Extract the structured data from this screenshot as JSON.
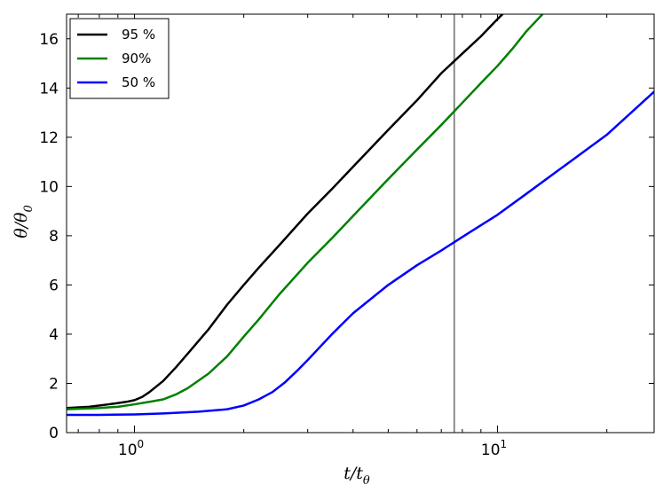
{
  "chart_data": {
    "type": "line",
    "xscale": "log",
    "xlim": [
      0.65,
      27
    ],
    "ylim": [
      0,
      17
    ],
    "x_ticks": [
      {
        "value": 1,
        "base": "10",
        "exp": "0"
      },
      {
        "value": 10,
        "base": "10",
        "exp": "1"
      }
    ],
    "x_minor_ticks": [
      0.7,
      0.8,
      0.9,
      2,
      3,
      4,
      5,
      6,
      7,
      8,
      9,
      20
    ],
    "y_ticks": [
      {
        "value": 0,
        "label": "0"
      },
      {
        "value": 2,
        "label": "2"
      },
      {
        "value": 4,
        "label": "4"
      },
      {
        "value": 6,
        "label": "6"
      },
      {
        "value": 8,
        "label": "8"
      },
      {
        "value": 10,
        "label": "10"
      },
      {
        "value": 12,
        "label": "12"
      },
      {
        "value": 14,
        "label": "14"
      },
      {
        "value": 16,
        "label": "16"
      }
    ],
    "xlabel": {
      "main": "t/t",
      "sub": "θ"
    },
    "ylabel": {
      "main": "θ/θ",
      "sub": "0"
    },
    "grid": false,
    "legend_position": "top-left",
    "vline": {
      "x": 7.6,
      "color": "#808080"
    },
    "series": [
      {
        "name": "95 %",
        "color": "#000000",
        "x": [
          0.65,
          0.75,
          0.85,
          0.95,
          1.0,
          1.05,
          1.1,
          1.2,
          1.3,
          1.4,
          1.6,
          1.8,
          2.0,
          2.2,
          2.5,
          3.0,
          3.5,
          4.0,
          5.0,
          6.0,
          7.0,
          8.0,
          9.0,
          10.0,
          11.0
        ],
        "y": [
          1.0,
          1.05,
          1.15,
          1.25,
          1.32,
          1.45,
          1.65,
          2.1,
          2.65,
          3.2,
          4.2,
          5.2,
          6.0,
          6.7,
          7.6,
          8.9,
          9.9,
          10.8,
          12.3,
          13.5,
          14.6,
          15.4,
          16.1,
          16.8,
          17.4
        ]
      },
      {
        "name": "90%",
        "color": "#008000",
        "x": [
          0.65,
          0.8,
          0.9,
          1.0,
          1.1,
          1.2,
          1.3,
          1.4,
          1.6,
          1.8,
          2.0,
          2.2,
          2.5,
          3.0,
          3.5,
          4.0,
          5.0,
          6.0,
          7.0,
          8.0,
          9.0,
          10.0,
          11.0,
          12.0,
          13.5
        ],
        "y": [
          0.95,
          1.0,
          1.05,
          1.15,
          1.25,
          1.35,
          1.55,
          1.8,
          2.4,
          3.1,
          3.9,
          4.6,
          5.6,
          6.9,
          7.9,
          8.8,
          10.3,
          11.5,
          12.5,
          13.4,
          14.2,
          14.9,
          15.6,
          16.3,
          17.1
        ]
      },
      {
        "name": "50 %",
        "color": "#0000ff",
        "x": [
          0.65,
          0.8,
          1.0,
          1.2,
          1.5,
          1.8,
          2.0,
          2.2,
          2.4,
          2.6,
          2.8,
          3.0,
          3.5,
          4.0,
          5.0,
          6.0,
          7.0,
          8.0,
          10.0,
          12.0,
          15.0,
          20.0,
          27.0
        ],
        "y": [
          0.72,
          0.72,
          0.74,
          0.78,
          0.85,
          0.95,
          1.1,
          1.35,
          1.65,
          2.05,
          2.5,
          2.95,
          4.0,
          4.85,
          6.0,
          6.8,
          7.4,
          7.95,
          8.85,
          9.7,
          10.75,
          12.1,
          13.85
        ]
      }
    ]
  }
}
